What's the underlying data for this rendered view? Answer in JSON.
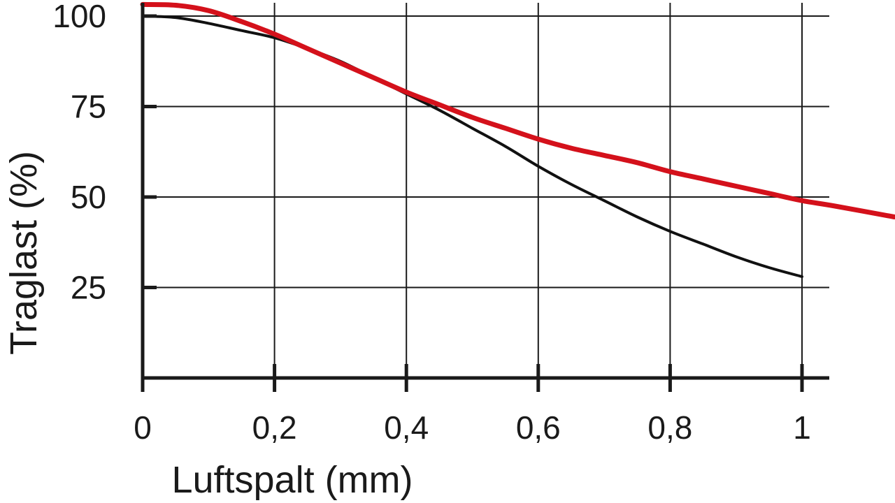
{
  "chart_data": {
    "type": "line",
    "xlabel": "Luftspalt (mm)",
    "ylabel": "Traglast (%)",
    "xlim": [
      0,
      1.14
    ],
    "ylim": [
      0,
      100
    ],
    "x_ticks": [
      "0",
      "0,2",
      "0,4",
      "0,6",
      "0,8",
      "1"
    ],
    "y_ticks": [
      "25",
      "50",
      "75",
      "100"
    ],
    "grid": true,
    "colors": {
      "series_1": "#111111",
      "series_2": "#d4111b"
    },
    "series": [
      {
        "x": [
          0,
          0.05,
          0.1,
          0.15,
          0.2,
          0.25,
          0.3,
          0.35,
          0.4,
          0.45,
          0.5,
          0.55,
          0.6,
          0.65,
          0.7,
          0.75,
          0.8,
          0.85,
          0.9,
          0.95,
          1.0
        ],
        "y": [
          100,
          99.6,
          98,
          96,
          94,
          91,
          87.5,
          83,
          78.5,
          74,
          69,
          64,
          58.5,
          53.5,
          49,
          44.5,
          40.5,
          37,
          33.5,
          30.5,
          28
        ]
      },
      {
        "x": [
          0,
          0.05,
          0.1,
          0.15,
          0.2,
          0.25,
          0.3,
          0.35,
          0.4,
          0.45,
          0.5,
          0.55,
          0.6,
          0.65,
          0.7,
          0.75,
          0.8,
          0.85,
          0.9,
          0.95,
          1.0,
          1.05,
          1.14
        ],
        "y": [
          103.2,
          103,
          101.5,
          98.5,
          95,
          91,
          87,
          83,
          79,
          75.5,
          72,
          69,
          66,
          63.5,
          61.5,
          59.5,
          57,
          55,
          53,
          51,
          49,
          47.5,
          44.5
        ]
      }
    ]
  }
}
